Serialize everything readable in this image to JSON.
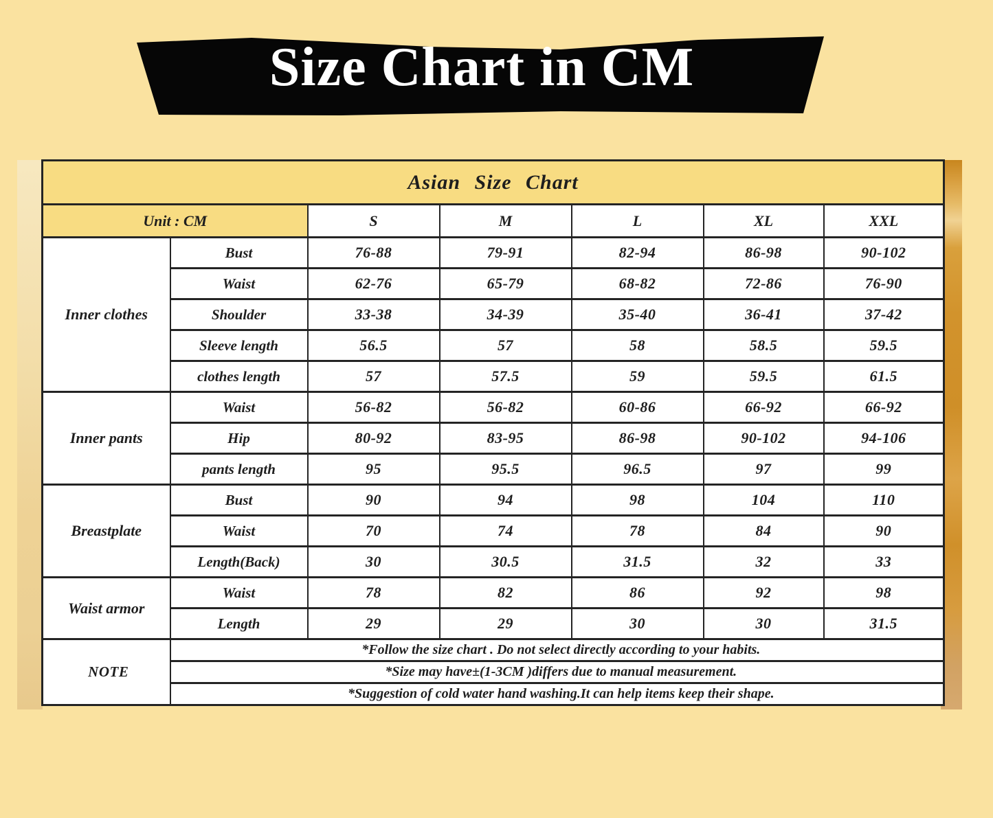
{
  "banner": {
    "title": "Size Chart in CM"
  },
  "chart_data": {
    "type": "table",
    "title": "Asian Size Chart",
    "unit_label": "Unit : CM",
    "columns": [
      "S",
      "M",
      "L",
      "XL",
      "XXL"
    ],
    "groups": [
      {
        "name": "Inner clothes",
        "rows": [
          {
            "label": "Bust",
            "values": [
              "76-88",
              "79-91",
              "82-94",
              "86-98",
              "90-102"
            ]
          },
          {
            "label": "Waist",
            "values": [
              "62-76",
              "65-79",
              "68-82",
              "72-86",
              "76-90"
            ]
          },
          {
            "label": "Shoulder",
            "values": [
              "33-38",
              "34-39",
              "35-40",
              "36-41",
              "37-42"
            ]
          },
          {
            "label": "Sleeve length",
            "values": [
              "56.5",
              "57",
              "58",
              "58.5",
              "59.5"
            ]
          },
          {
            "label": "clothes length",
            "values": [
              "57",
              "57.5",
              "59",
              "59.5",
              "61.5"
            ]
          }
        ]
      },
      {
        "name": "Inner pants",
        "rows": [
          {
            "label": "Waist",
            "values": [
              "56-82",
              "56-82",
              "60-86",
              "66-92",
              "66-92"
            ]
          },
          {
            "label": "Hip",
            "values": [
              "80-92",
              "83-95",
              "86-98",
              "90-102",
              "94-106"
            ]
          },
          {
            "label": "pants length",
            "values": [
              "95",
              "95.5",
              "96.5",
              "97",
              "99"
            ]
          }
        ]
      },
      {
        "name": "Breastplate",
        "rows": [
          {
            "label": "Bust",
            "values": [
              "90",
              "94",
              "98",
              "104",
              "110"
            ]
          },
          {
            "label": "Waist",
            "values": [
              "70",
              "74",
              "78",
              "84",
              "90"
            ]
          },
          {
            "label": "Length(Back)",
            "values": [
              "30",
              "30.5",
              "31.5",
              "32",
              "33"
            ]
          }
        ]
      },
      {
        "name": "Waist armor",
        "rows": [
          {
            "label": "Waist",
            "values": [
              "78",
              "82",
              "86",
              "92",
              "98"
            ]
          },
          {
            "label": "Length",
            "values": [
              "29",
              "29",
              "30",
              "30",
              "31.5"
            ]
          }
        ]
      }
    ],
    "notes": {
      "label": "NOTE",
      "lines": [
        "*Follow the size chart . Do not select directly according to your habits.",
        "*Size may have±(1-3CM )differs due to manual measurement.",
        "*Suggestion of cold water hand washing.It can help items keep their shape."
      ]
    }
  },
  "colors": {
    "page_background": "#fae2a0",
    "banner_background": "#060606",
    "banner_text": "#ffffff",
    "table_yellow": "#f8dc82",
    "table_white": "#ffffff",
    "table_border": "#242424",
    "table_text": "#1e1e1e",
    "photo_gold": "#d3942c"
  }
}
